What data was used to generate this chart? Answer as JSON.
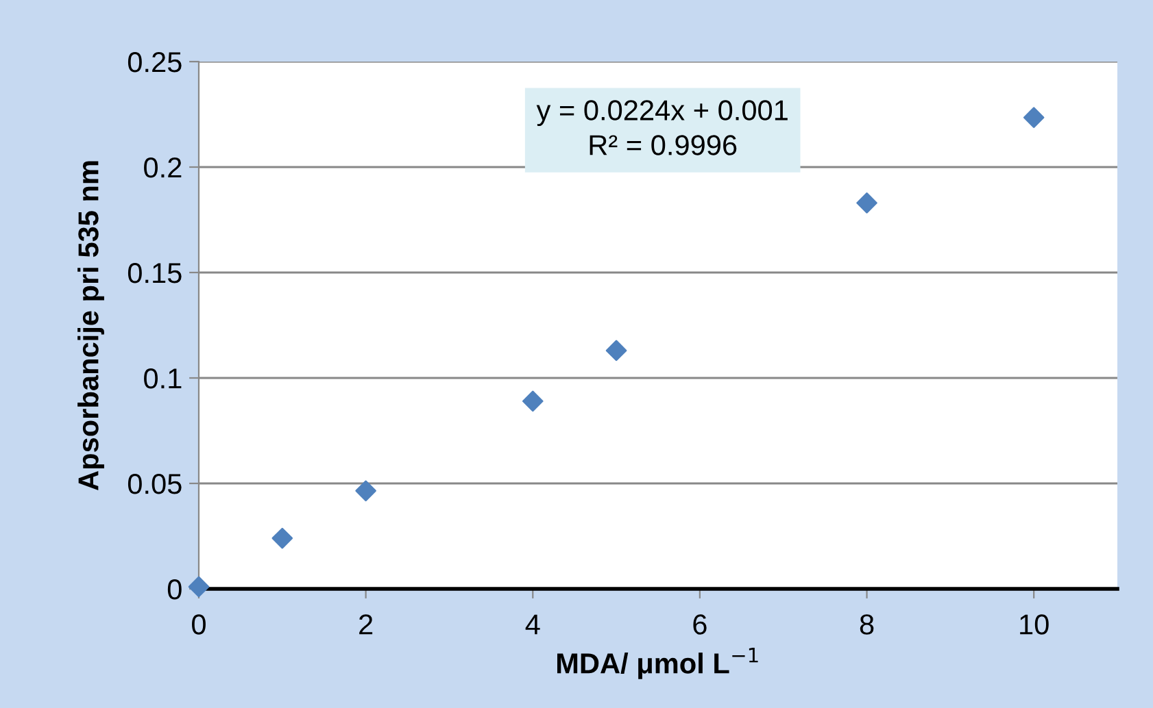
{
  "chart_data": {
    "type": "scatter",
    "xlabel": "MDA/ μmol L$^{−1}$",
    "ylabel": "Apsorbancije pri 535 nm",
    "x": [
      0,
      1,
      2,
      4,
      5,
      8,
      10
    ],
    "series": [
      {
        "color": "#4f81bd",
        "values": [
          0.001,
          0.024,
          0.0465,
          0.089,
          0.113,
          0.183,
          0.2235
        ]
      }
    ],
    "marker": "diamond",
    "xlim": [
      0,
      11
    ],
    "xticks": [
      0,
      2,
      4,
      6,
      8,
      10
    ],
    "ylim": [
      0,
      0.25
    ],
    "yticks": [
      0,
      0.05,
      0.1,
      0.15,
      0.2,
      0.25
    ],
    "grid": "y",
    "legend": false,
    "annotations": [
      "y = 0.0224x + 0.001\nR² = 0.9996"
    ]
  }
}
